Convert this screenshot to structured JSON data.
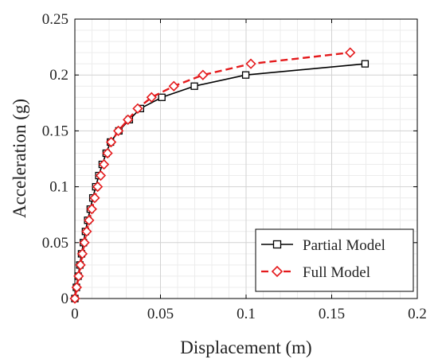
{
  "chart_data": {
    "type": "line",
    "title": "",
    "xlabel": "Displacement (m)",
    "ylabel": "Acceleration (g)",
    "xlim": [
      0,
      0.2
    ],
    "ylim": [
      0,
      0.25
    ],
    "x_ticks": [
      0,
      0.05,
      0.1,
      0.15,
      0.2
    ],
    "x_tick_labels": [
      "0",
      "0.05",
      "0.1",
      "0.15",
      "0.2"
    ],
    "y_ticks": [
      0,
      0.05,
      0.1,
      0.15,
      0.2,
      0.25
    ],
    "y_tick_labels": [
      "0",
      "0.05",
      "0.1",
      "0.15",
      "0.2",
      "0.25"
    ],
    "grid": true,
    "minor_grid": true,
    "legend_position": "bottom-right",
    "series": [
      {
        "name": "Partial Model",
        "color": "#000000",
        "line_style": "solid",
        "marker": "square",
        "points": [
          [
            0,
            0
          ],
          [
            0.0009,
            0.01
          ],
          [
            0.0019,
            0.02
          ],
          [
            0.0029,
            0.03
          ],
          [
            0.0039,
            0.04
          ],
          [
            0.005,
            0.05
          ],
          [
            0.0062,
            0.06
          ],
          [
            0.0075,
            0.07
          ],
          [
            0.009,
            0.08
          ],
          [
            0.0105,
            0.09
          ],
          [
            0.0122,
            0.1
          ],
          [
            0.014,
            0.11
          ],
          [
            0.016,
            0.12
          ],
          [
            0.0183,
            0.13
          ],
          [
            0.0208,
            0.14
          ],
          [
            0.0257,
            0.15
          ],
          [
            0.0318,
            0.16
          ],
          [
            0.0383,
            0.17
          ],
          [
            0.0508,
            0.18
          ],
          [
            0.0698,
            0.19
          ],
          [
            0.0998,
            0.2
          ],
          [
            0.1695,
            0.21
          ]
        ]
      },
      {
        "name": "Full Model",
        "color": "#e41a1c",
        "line_style": "dashed",
        "marker": "diamond",
        "points": [
          [
            0,
            0
          ],
          [
            0.0011,
            0.01
          ],
          [
            0.0022,
            0.02
          ],
          [
            0.0033,
            0.03
          ],
          [
            0.0044,
            0.04
          ],
          [
            0.0056,
            0.05
          ],
          [
            0.0069,
            0.06
          ],
          [
            0.0083,
            0.07
          ],
          [
            0.0099,
            0.08
          ],
          [
            0.0116,
            0.09
          ],
          [
            0.0133,
            0.1
          ],
          [
            0.0151,
            0.11
          ],
          [
            0.017,
            0.12
          ],
          [
            0.0191,
            0.13
          ],
          [
            0.0212,
            0.14
          ],
          [
            0.0254,
            0.15
          ],
          [
            0.031,
            0.16
          ],
          [
            0.0367,
            0.17
          ],
          [
            0.0448,
            0.18
          ],
          [
            0.0578,
            0.19
          ],
          [
            0.0748,
            0.2
          ],
          [
            0.1028,
            0.21
          ],
          [
            0.1608,
            0.22
          ]
        ]
      }
    ]
  }
}
